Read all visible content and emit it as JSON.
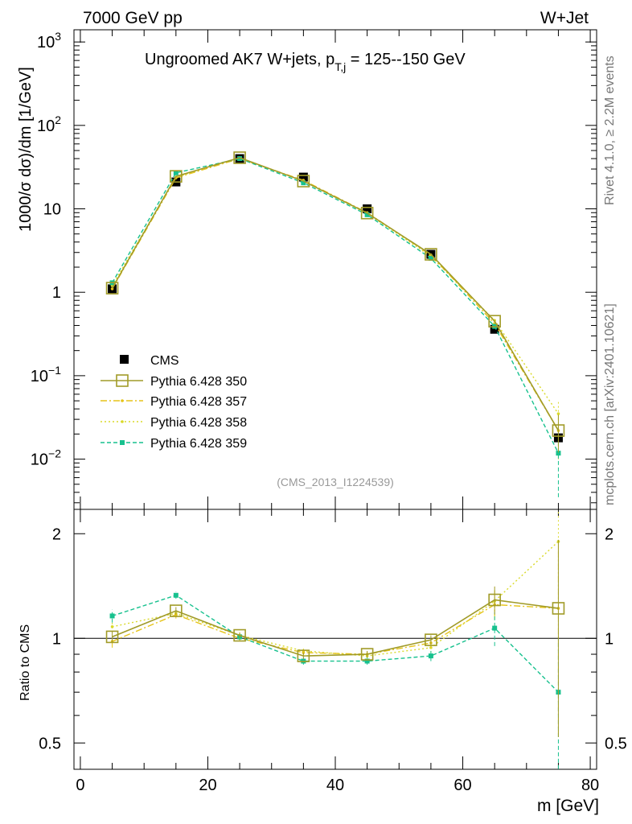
{
  "header": {
    "left": "7000 GeV pp",
    "right": "W+Jet"
  },
  "side": {
    "rivet": "Rivet 4.1.0, ≥ 2.2M events",
    "mcplots": "mcplots.cern.ch [arXiv:2401.10621]"
  },
  "colors": {
    "cms": "#000000",
    "p350": "#a19b28",
    "p357": "#e6c419",
    "p358": "#dada2a",
    "p359": "#17c18e"
  },
  "chart_data": [
    {
      "type": "line",
      "scale": "log",
      "title": "Ungroomed AK7 W+jets, p_T,j = 125--150 GeV",
      "title_parts": {
        "before": "Ungroomed AK7 W+jets, p",
        "sub": "T,j",
        "after": " = 125--150 GeV"
      },
      "ylabel": "1000/σ  dσ)/dm [1/GeV]",
      "xlim": [
        -1,
        81
      ],
      "ylim": [
        0.0025,
        1400
      ],
      "y_ticks": [
        {
          "value": 1000,
          "base": "10",
          "exp": "3"
        },
        {
          "value": 100,
          "base": "10",
          "exp": "2"
        },
        {
          "value": 10,
          "base": "10",
          "exp": ""
        },
        {
          "value": 1,
          "base": "1",
          "exp": ""
        },
        {
          "value": 0.1,
          "base": "10",
          "exp": "−1"
        },
        {
          "value": 0.01,
          "base": "10",
          "exp": "−2"
        }
      ],
      "watermark": "(CMS_2013_I1224539)",
      "x": [
        5,
        15,
        25,
        35,
        45,
        55,
        65,
        75
      ],
      "cms": {
        "name": "CMS",
        "values": [
          1.1,
          21,
          40,
          24,
          10,
          2.85,
          0.36,
          0.018
        ]
      },
      "series": [
        {
          "name": "Pythia 6.428 350",
          "style": "p350",
          "values": [
            1.12,
            24.5,
            41,
            21.5,
            8.9,
            2.85,
            0.45,
            0.022
          ],
          "err_lo": [
            0,
            0,
            0,
            0,
            0,
            0,
            0,
            0.01
          ],
          "err_hi": [
            0,
            0,
            0,
            0,
            0,
            0,
            0,
            0.012
          ]
        },
        {
          "name": "Pythia 6.428 357",
          "style": "p357",
          "values": [
            1.1,
            23.5,
            40,
            22,
            9.0,
            2.8,
            0.42,
            0.022
          ],
          "err_lo": [
            0,
            0,
            0,
            0,
            0,
            0,
            0,
            0.012
          ],
          "err_hi": [
            0,
            0,
            0,
            0,
            0,
            0,
            0,
            0.012
          ]
        },
        {
          "name": "Pythia 6.428 358",
          "style": "p358",
          "values": [
            1.2,
            24,
            41,
            21.5,
            8.8,
            2.7,
            0.46,
            0.035
          ],
          "err_lo": [
            0,
            0,
            0,
            0,
            0,
            0,
            0,
            0.018
          ],
          "err_hi": [
            0,
            0,
            0,
            0,
            0,
            0,
            0,
            0.015
          ]
        },
        {
          "name": "Pythia 6.428 359",
          "style": "p359",
          "values": [
            1.3,
            27,
            40,
            20.5,
            8.5,
            2.55,
            0.39,
            0.0118
          ],
          "err_lo": [
            0,
            0,
            0,
            0,
            0,
            0,
            0,
            0.0083
          ],
          "err_hi": [
            0,
            0,
            0,
            0,
            0,
            0,
            0,
            0.005
          ]
        }
      ]
    },
    {
      "type": "line",
      "scale": "log",
      "ylabel": "Ratio to CMS",
      "xlabel": "m [GeV]",
      "xlim": [
        -1,
        81
      ],
      "ylim": [
        0.42,
        2.35
      ],
      "x_ticks": [
        0,
        20,
        40,
        60,
        80
      ],
      "y_ticks": [
        0.5,
        1,
        2
      ],
      "x": [
        5,
        15,
        25,
        35,
        45,
        55,
        65,
        75
      ],
      "series": [
        {
          "name": "Pythia 6.428 350",
          "style": "p350",
          "values": [
            1.01,
            1.2,
            1.02,
            0.89,
            0.9,
            0.99,
            1.29,
            1.22
          ],
          "err_lo": [
            0.04,
            0.03,
            0.02,
            0.02,
            0.02,
            0.03,
            0.12,
            0.7
          ],
          "err_hi": [
            0.04,
            0.03,
            0.02,
            0.02,
            0.02,
            0.03,
            0.12,
            0.7
          ]
        },
        {
          "name": "Pythia 6.428 357",
          "style": "p357",
          "values": [
            0.98,
            1.17,
            1.0,
            0.91,
            0.9,
            0.97,
            1.25,
            1.22
          ],
          "err_lo": [
            0.04,
            0.03,
            0.02,
            0.02,
            0.02,
            0.03,
            0.12,
            0.7
          ],
          "err_hi": [
            0.04,
            0.03,
            0.02,
            0.02,
            0.02,
            0.03,
            0.12,
            0.7
          ]
        },
        {
          "name": "Pythia 6.428 358",
          "style": "p358",
          "values": [
            1.08,
            1.18,
            1.02,
            0.92,
            0.89,
            0.94,
            1.28,
            1.9
          ],
          "err_lo": [
            0.04,
            0.03,
            0.02,
            0.02,
            0.02,
            0.03,
            0.12,
            0.9
          ],
          "err_hi": [
            0.04,
            0.03,
            0.02,
            0.02,
            0.02,
            0.03,
            0.12,
            0.9
          ]
        },
        {
          "name": "Pythia 6.428 359",
          "style": "p359",
          "values": [
            1.16,
            1.33,
            1.01,
            0.86,
            0.86,
            0.89,
            1.07,
            0.7
          ],
          "err_lo": [
            0.05,
            0.03,
            0.02,
            0.02,
            0.02,
            0.03,
            0.12,
            0.36
          ],
          "err_hi": [
            0.05,
            0.03,
            0.02,
            0.02,
            0.02,
            0.03,
            0.12,
            0.3
          ]
        }
      ]
    }
  ]
}
